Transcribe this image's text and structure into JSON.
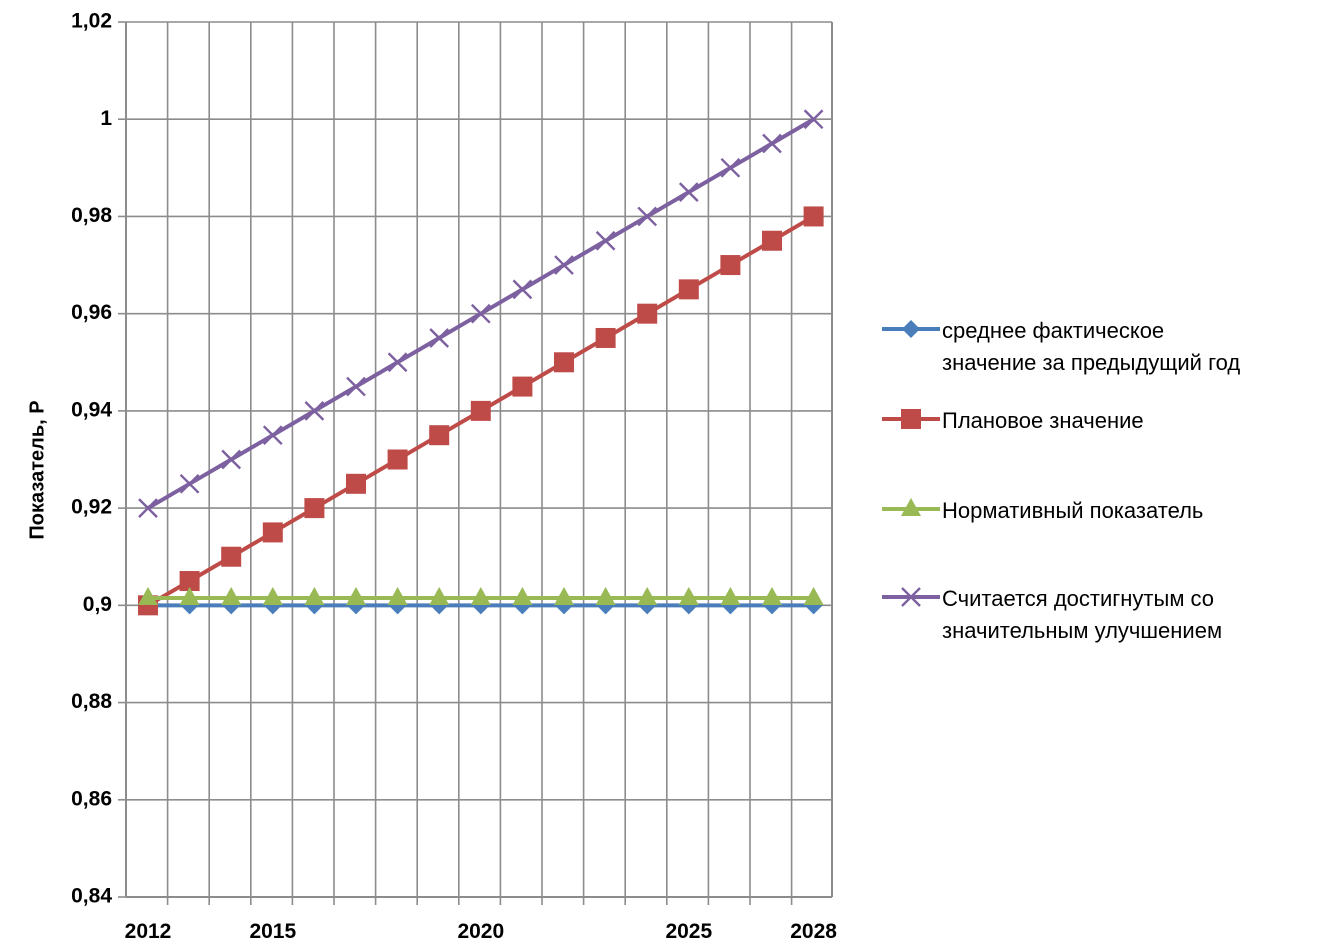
{
  "chart_data": {
    "type": "line",
    "ylabel": "Показатель, Р",
    "ylim": [
      0.84,
      1.02
    ],
    "yticks": [
      0.84,
      0.86,
      0.88,
      0.9,
      0.92,
      0.94,
      0.96,
      0.98,
      1,
      1.02
    ],
    "ytick_labels": [
      "0,84",
      "0,86",
      "0,88",
      "0,9",
      "0,92",
      "0,94",
      "0,96",
      "0,98",
      "1",
      "1,02"
    ],
    "x": [
      2012,
      2013,
      2014,
      2015,
      2016,
      2017,
      2018,
      2019,
      2020,
      2021,
      2022,
      2023,
      2024,
      2025,
      2026,
      2027,
      2028
    ],
    "xtick_labels": [
      {
        "x": 2012,
        "label": "2012"
      },
      {
        "x": 2015,
        "label": "2015"
      },
      {
        "x": 2020,
        "label": "2020"
      },
      {
        "x": 2025,
        "label": "2025"
      },
      {
        "x": 2028,
        "label": "2028"
      }
    ],
    "grid": true,
    "legend_position": "right",
    "series": [
      {
        "name": "среднее фактическое\nзначение за предыдущий год",
        "color": "#4a7ebb",
        "marker": "diamond",
        "values": [
          0.9,
          0.9,
          0.9,
          0.9,
          0.9,
          0.9,
          0.9,
          0.9,
          0.9,
          0.9,
          0.9,
          0.9,
          0.9,
          0.9,
          0.9,
          0.9,
          0.9
        ]
      },
      {
        "name": "Плановое значение",
        "color": "#be4b48",
        "marker": "square",
        "values": [
          0.9,
          0.905,
          0.91,
          0.915,
          0.92,
          0.925,
          0.93,
          0.935,
          0.94,
          0.945,
          0.95,
          0.955,
          0.96,
          0.965,
          0.97,
          0.975,
          0.98
        ]
      },
      {
        "name": "Нормативный показатель",
        "color": "#98b954",
        "marker": "triangle",
        "values": [
          0.9015,
          0.9015,
          0.9015,
          0.9015,
          0.9015,
          0.9015,
          0.9015,
          0.9015,
          0.9015,
          0.9015,
          0.9015,
          0.9015,
          0.9015,
          0.9015,
          0.9015,
          0.9015,
          0.9015
        ]
      },
      {
        "name": "Считается достигнутым со\nзначительным улучшением",
        "color": "#7d60a0",
        "marker": "x",
        "values": [
          0.92,
          0.925,
          0.93,
          0.935,
          0.94,
          0.945,
          0.95,
          0.955,
          0.96,
          0.965,
          0.97,
          0.975,
          0.98,
          0.985,
          0.99,
          0.995,
          1.0
        ]
      }
    ]
  }
}
